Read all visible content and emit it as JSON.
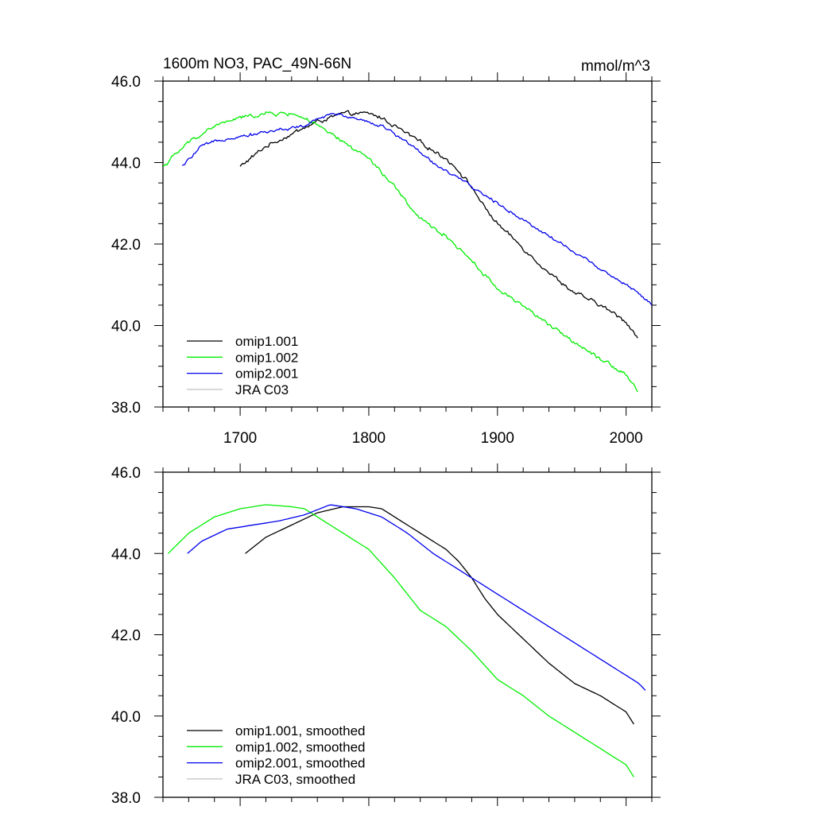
{
  "chart_data": [
    {
      "type": "line",
      "title": "1600m NO3, PAC_49N-66N",
      "units": "mmol/m^3",
      "xlabel": "",
      "ylabel": "",
      "xlim": [
        1640,
        2020
      ],
      "ylim": [
        38.0,
        46.0
      ],
      "x_ticks": [
        "1700",
        "1800",
        "1900",
        "2000"
      ],
      "y_ticks": [
        "38.0",
        "40.0",
        "42.0",
        "44.0",
        "46.0"
      ],
      "grid": false,
      "legend_position": "bottom-left",
      "series": [
        {
          "name": "omip1.001",
          "color": "#000000",
          "noise": 0.05,
          "x": [
            1700,
            1720,
            1740,
            1760,
            1780,
            1800,
            1810,
            1820,
            1840,
            1860,
            1870,
            1880,
            1890,
            1900,
            1920,
            1940,
            1960,
            1980,
            2000,
            2009
          ],
          "y": [
            43.9,
            44.4,
            44.7,
            45.0,
            45.2,
            45.2,
            45.1,
            44.9,
            44.5,
            44.1,
            43.8,
            43.4,
            42.9,
            42.5,
            41.9,
            41.3,
            40.8,
            40.5,
            40.1,
            39.7
          ]
        },
        {
          "name": "omip1.002",
          "color": "#00ee00",
          "noise": 0.05,
          "x": [
            1640,
            1660,
            1680,
            1700,
            1720,
            1740,
            1750,
            1760,
            1780,
            1800,
            1820,
            1840,
            1860,
            1880,
            1900,
            1920,
            1940,
            1960,
            1980,
            2000,
            2009
          ],
          "y": [
            43.9,
            44.5,
            44.9,
            45.1,
            45.2,
            45.2,
            45.1,
            44.9,
            44.5,
            44.1,
            43.4,
            42.6,
            42.2,
            41.6,
            40.9,
            40.5,
            40.0,
            39.6,
            39.2,
            38.8,
            38.4
          ]
        },
        {
          "name": "omip2.001",
          "color": "#0000ee",
          "noise": 0.04,
          "x": [
            1655,
            1670,
            1690,
            1710,
            1730,
            1750,
            1770,
            1790,
            1810,
            1830,
            1850,
            1870,
            1890,
            1910,
            1930,
            1950,
            1970,
            1990,
            2010,
            2020
          ],
          "y": [
            43.9,
            44.4,
            44.6,
            44.7,
            44.8,
            44.9,
            45.2,
            45.1,
            44.9,
            44.5,
            44.0,
            43.6,
            43.2,
            42.8,
            42.4,
            42.0,
            41.6,
            41.2,
            40.8,
            40.5
          ]
        },
        {
          "name": "JRA C03",
          "color": "#c0c0c0",
          "x": [],
          "y": []
        }
      ]
    },
    {
      "type": "line",
      "title": "",
      "xlabel": "",
      "ylabel": "",
      "xlim": [
        1640,
        2020
      ],
      "ylim": [
        38.0,
        46.0
      ],
      "x_ticks": [],
      "y_ticks": [
        "38.0",
        "40.0",
        "42.0",
        "44.0",
        "46.0"
      ],
      "grid": false,
      "legend_position": "bottom-left",
      "series": [
        {
          "name": "omip1.001, smoothed",
          "color": "#000000",
          "noise": 0,
          "x": [
            1704,
            1720,
            1740,
            1760,
            1780,
            1800,
            1810,
            1820,
            1840,
            1860,
            1870,
            1880,
            1890,
            1900,
            1920,
            1940,
            1960,
            1980,
            2000,
            2006
          ],
          "y": [
            44.0,
            44.4,
            44.7,
            45.0,
            45.15,
            45.15,
            45.1,
            44.9,
            44.5,
            44.1,
            43.8,
            43.4,
            42.9,
            42.5,
            41.9,
            41.3,
            40.8,
            40.5,
            40.1,
            39.8
          ]
        },
        {
          "name": "omip1.002, smoothed",
          "color": "#00ee00",
          "noise": 0,
          "x": [
            1644,
            1660,
            1680,
            1700,
            1720,
            1740,
            1750,
            1760,
            1780,
            1800,
            1820,
            1840,
            1860,
            1880,
            1900,
            1920,
            1940,
            1960,
            1980,
            2000,
            2006
          ],
          "y": [
            44.0,
            44.5,
            44.9,
            45.1,
            45.2,
            45.15,
            45.1,
            44.9,
            44.5,
            44.1,
            43.4,
            42.6,
            42.2,
            41.6,
            40.9,
            40.5,
            40.0,
            39.6,
            39.2,
            38.8,
            38.5
          ]
        },
        {
          "name": "omip2.001, smoothed",
          "color": "#0000ee",
          "noise": 0,
          "x": [
            1659,
            1670,
            1690,
            1710,
            1730,
            1750,
            1770,
            1790,
            1810,
            1830,
            1850,
            1870,
            1890,
            1910,
            1930,
            1950,
            1970,
            1990,
            2010,
            2016
          ],
          "y": [
            44.0,
            44.3,
            44.6,
            44.7,
            44.8,
            44.95,
            45.2,
            45.1,
            44.9,
            44.5,
            44.0,
            43.6,
            43.2,
            42.8,
            42.4,
            42.0,
            41.6,
            41.2,
            40.8,
            40.6
          ]
        },
        {
          "name": "JRA C03, smoothed",
          "color": "#c0c0c0",
          "x": [],
          "y": []
        }
      ]
    }
  ]
}
